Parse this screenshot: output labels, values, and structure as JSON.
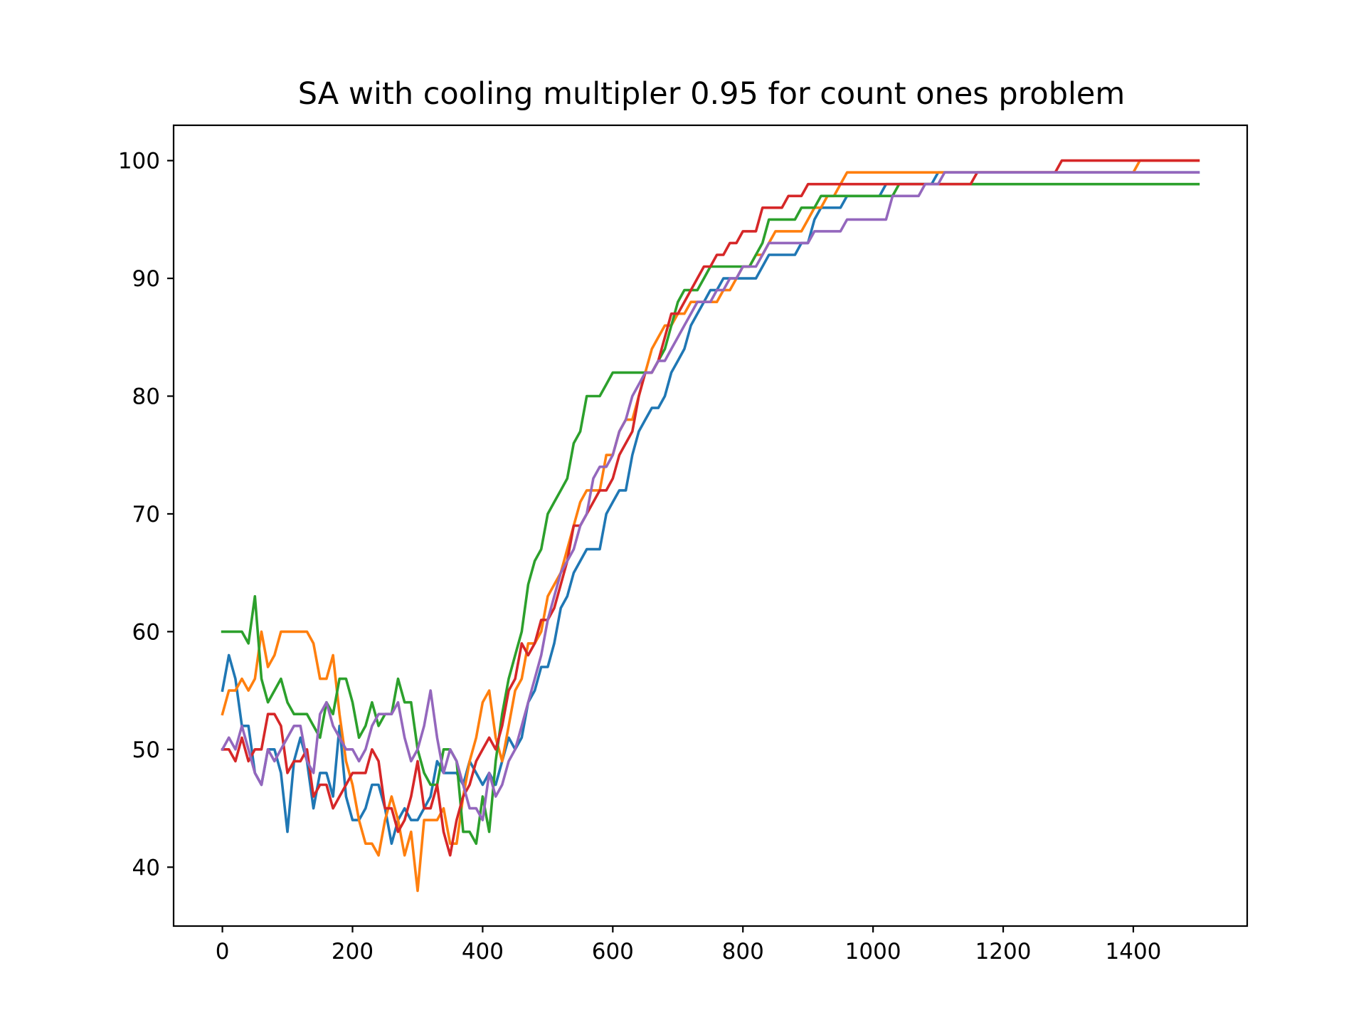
{
  "chart_data": {
    "type": "line",
    "title": "SA with cooling multipler 0.95 for count ones problem",
    "xlabel": "",
    "ylabel": "",
    "xlim": [
      -75,
      1575
    ],
    "ylim": [
      35,
      103
    ],
    "xticks": [
      0,
      200,
      400,
      600,
      800,
      1000,
      1200,
      1400
    ],
    "yticks": [
      40,
      50,
      60,
      70,
      80,
      90,
      100
    ],
    "grid": false,
    "legend": "none",
    "x": [
      0,
      10,
      20,
      30,
      40,
      50,
      60,
      70,
      80,
      90,
      100,
      110,
      120,
      130,
      140,
      150,
      160,
      170,
      180,
      190,
      200,
      210,
      220,
      230,
      240,
      250,
      260,
      270,
      280,
      290,
      300,
      310,
      320,
      330,
      340,
      350,
      360,
      370,
      380,
      390,
      400,
      410,
      420,
      430,
      440,
      450,
      460,
      470,
      480,
      490,
      500,
      510,
      520,
      530,
      540,
      550,
      560,
      570,
      580,
      590,
      600,
      610,
      620,
      630,
      640,
      650,
      660,
      670,
      680,
      690,
      700,
      710,
      720,
      730,
      740,
      750,
      760,
      770,
      780,
      790,
      800,
      810,
      820,
      830,
      840,
      850,
      860,
      870,
      880,
      890,
      900,
      910,
      920,
      930,
      940,
      950,
      960,
      970,
      980,
      990,
      1000,
      1010,
      1020,
      1030,
      1040,
      1050,
      1060,
      1070,
      1080,
      1090,
      1100,
      1110,
      1120,
      1130,
      1140,
      1150,
      1160,
      1170,
      1180,
      1190,
      1200,
      1210,
      1220,
      1230,
      1240,
      1250,
      1260,
      1270,
      1280,
      1290,
      1300,
      1310,
      1320,
      1330,
      1340,
      1350,
      1360,
      1370,
      1380,
      1390,
      1400,
      1410,
      1420,
      1430,
      1440,
      1450,
      1460,
      1470,
      1480,
      1490,
      1500
    ],
    "series": [
      {
        "color": "#1f77b4",
        "values": [
          55,
          58,
          56,
          52,
          52,
          48,
          47,
          50,
          50,
          48,
          43,
          49,
          51,
          49,
          45,
          48,
          48,
          46,
          52,
          46,
          44,
          44,
          45,
          47,
          47,
          45,
          42,
          44,
          45,
          44,
          44,
          45,
          46,
          49,
          48,
          48,
          48,
          47,
          49,
          48,
          47,
          48,
          47,
          49,
          51,
          50,
          51,
          54,
          55,
          57,
          57,
          59,
          62,
          63,
          65,
          66,
          67,
          67,
          67,
          70,
          71,
          72,
          72,
          75,
          77,
          78,
          79,
          79,
          80,
          82,
          83,
          84,
          86,
          87,
          88,
          89,
          89,
          90,
          90,
          90,
          90,
          90,
          90,
          91,
          92,
          92,
          92,
          92,
          92,
          93,
          93,
          95,
          96,
          96,
          96,
          96,
          97,
          97,
          97,
          97,
          97,
          97,
          98,
          98,
          98,
          98,
          98,
          98,
          98,
          98,
          99,
          99,
          99,
          99,
          99,
          99,
          99,
          99,
          99,
          99,
          99,
          99,
          99,
          99,
          99,
          99,
          99,
          99,
          99,
          99,
          99,
          99,
          99,
          99,
          99,
          99,
          99,
          99,
          99,
          99,
          99,
          99,
          99,
          99,
          99,
          99,
          99,
          99,
          99,
          99,
          99
        ]
      },
      {
        "color": "#ff7f0e",
        "values": [
          53,
          55,
          55,
          56,
          55,
          56,
          60,
          57,
          58,
          60,
          60,
          60,
          60,
          60,
          59,
          56,
          56,
          58,
          53,
          49,
          47,
          44,
          42,
          42,
          41,
          44,
          46,
          44,
          41,
          43,
          38,
          44,
          44,
          44,
          45,
          42,
          42,
          46,
          49,
          51,
          54,
          55,
          51,
          49,
          52,
          55,
          56,
          59,
          59,
          60,
          63,
          64,
          65,
          67,
          69,
          71,
          72,
          72,
          72,
          75,
          75,
          77,
          78,
          78,
          80,
          82,
          84,
          85,
          86,
          86,
          87,
          87,
          88,
          88,
          88,
          88,
          88,
          89,
          89,
          90,
          91,
          91,
          92,
          92,
          93,
          94,
          94,
          94,
          94,
          94,
          95,
          96,
          96,
          97,
          97,
          98,
          99,
          99,
          99,
          99,
          99,
          99,
          99,
          99,
          99,
          99,
          99,
          99,
          99,
          99,
          99,
          99,
          99,
          99,
          99,
          99,
          99,
          99,
          99,
          99,
          99,
          99,
          99,
          99,
          99,
          99,
          99,
          99,
          99,
          99,
          99,
          99,
          99,
          99,
          99,
          99,
          99,
          99,
          99,
          99,
          99,
          100,
          100,
          100,
          100,
          100,
          100,
          100,
          100,
          100,
          100
        ]
      },
      {
        "color": "#2ca02c",
        "values": [
          60,
          60,
          60,
          60,
          59,
          63,
          56,
          54,
          55,
          56,
          54,
          53,
          53,
          53,
          52,
          51,
          54,
          53,
          56,
          56,
          54,
          51,
          52,
          54,
          52,
          53,
          53,
          56,
          54,
          54,
          50,
          48,
          47,
          47,
          50,
          50,
          49,
          43,
          43,
          42,
          46,
          43,
          49,
          53,
          56,
          58,
          60,
          64,
          66,
          67,
          70,
          71,
          72,
          73,
          76,
          77,
          80,
          80,
          80,
          81,
          82,
          82,
          82,
          82,
          82,
          82,
          82,
          83,
          84,
          86,
          88,
          89,
          89,
          89,
          90,
          91,
          91,
          91,
          91,
          91,
          91,
          91,
          92,
          93,
          95,
          95,
          95,
          95,
          95,
          96,
          96,
          96,
          97,
          97,
          97,
          97,
          97,
          97,
          97,
          97,
          97,
          97,
          97,
          97,
          98,
          98,
          98,
          98,
          98,
          98,
          98,
          98,
          98,
          98,
          98,
          98,
          98,
          98,
          98,
          98,
          98,
          98,
          98,
          98,
          98,
          98,
          98,
          98,
          98,
          98,
          98,
          98,
          98,
          98,
          98,
          98,
          98,
          98,
          98,
          98,
          98,
          98,
          98,
          98,
          98,
          98,
          98,
          98,
          98,
          98,
          98
        ]
      },
      {
        "color": "#d62728",
        "values": [
          50,
          50,
          49,
          51,
          49,
          50,
          50,
          53,
          53,
          52,
          48,
          49,
          49,
          50,
          46,
          47,
          47,
          45,
          46,
          47,
          48,
          48,
          48,
          50,
          49,
          45,
          45,
          43,
          44,
          46,
          49,
          45,
          45,
          47,
          43,
          41,
          44,
          46,
          47,
          49,
          50,
          51,
          50,
          52,
          55,
          56,
          59,
          58,
          59,
          61,
          61,
          62,
          64,
          66,
          69,
          69,
          70,
          71,
          72,
          72,
          73,
          75,
          76,
          77,
          80,
          82,
          82,
          83,
          85,
          87,
          87,
          88,
          89,
          90,
          91,
          91,
          92,
          92,
          93,
          93,
          94,
          94,
          94,
          96,
          96,
          96,
          96,
          97,
          97,
          97,
          98,
          98,
          98,
          98,
          98,
          98,
          98,
          98,
          98,
          98,
          98,
          98,
          98,
          98,
          98,
          98,
          98,
          98,
          98,
          98,
          98,
          98,
          98,
          98,
          98,
          98,
          99,
          99,
          99,
          99,
          99,
          99,
          99,
          99,
          99,
          99,
          99,
          99,
          99,
          100,
          100,
          100,
          100,
          100,
          100,
          100,
          100,
          100,
          100,
          100,
          100,
          100,
          100,
          100,
          100,
          100,
          100,
          100,
          100,
          100,
          100
        ]
      },
      {
        "color": "#9467bd",
        "values": [
          50,
          51,
          50,
          52,
          50,
          48,
          47,
          50,
          49,
          50,
          51,
          52,
          52,
          49,
          48,
          53,
          54,
          52,
          51,
          50,
          50,
          49,
          50,
          52,
          53,
          53,
          53,
          54,
          51,
          49,
          50,
          52,
          55,
          51,
          48,
          50,
          49,
          47,
          45,
          45,
          44,
          48,
          46,
          47,
          49,
          50,
          52,
          54,
          56,
          58,
          61,
          63,
          65,
          66,
          67,
          69,
          70,
          73,
          74,
          74,
          75,
          77,
          78,
          80,
          81,
          82,
          82,
          83,
          83,
          84,
          85,
          86,
          87,
          88,
          88,
          88,
          89,
          89,
          90,
          90,
          91,
          91,
          91,
          92,
          93,
          93,
          93,
          93,
          93,
          93,
          93,
          94,
          94,
          94,
          94,
          94,
          95,
          95,
          95,
          95,
          95,
          95,
          95,
          97,
          97,
          97,
          97,
          97,
          98,
          98,
          98,
          99,
          99,
          99,
          99,
          99,
          99,
          99,
          99,
          99,
          99,
          99,
          99,
          99,
          99,
          99,
          99,
          99,
          99,
          99,
          99,
          99,
          99,
          99,
          99,
          99,
          99,
          99,
          99,
          99,
          99,
          99,
          99,
          99,
          99,
          99,
          99,
          99,
          99,
          99,
          99
        ]
      }
    ]
  }
}
